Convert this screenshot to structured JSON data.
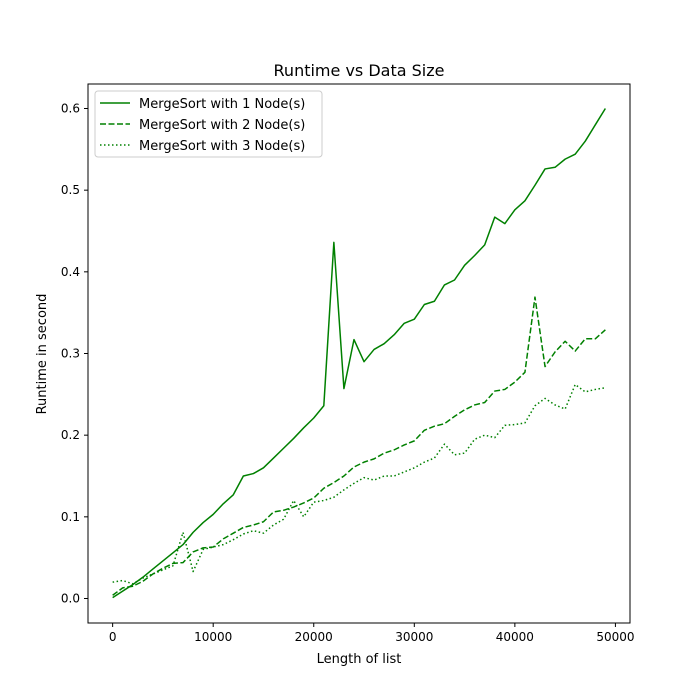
{
  "chart_data": {
    "type": "line",
    "title": "Runtime vs Data Size",
    "xlabel": "Length of list",
    "ylabel": "Runtime in second",
    "xlim": [
      -2450,
      51450
    ],
    "ylim": [
      -0.03,
      0.63
    ],
    "x_ticks": [
      0,
      10000,
      20000,
      30000,
      40000,
      50000
    ],
    "x_tick_labels": [
      "0",
      "10000",
      "20000",
      "30000",
      "40000",
      "50000"
    ],
    "y_ticks": [
      0.0,
      0.1,
      0.2,
      0.3,
      0.4,
      0.5,
      0.6
    ],
    "y_tick_labels": [
      "0.0",
      "0.1",
      "0.2",
      "0.3",
      "0.4",
      "0.5",
      "0.6"
    ],
    "grid": false,
    "legend_position": "top-left",
    "color": "#008000",
    "x": [
      0,
      1000,
      2000,
      3000,
      4000,
      5000,
      6000,
      7000,
      8000,
      9000,
      10000,
      11000,
      12000,
      13000,
      14000,
      15000,
      16000,
      17000,
      18000,
      19000,
      20000,
      21000,
      22000,
      23000,
      24000,
      25000,
      26000,
      27000,
      28000,
      29000,
      30000,
      31000,
      32000,
      33000,
      34000,
      35000,
      36000,
      37000,
      38000,
      39000,
      40000,
      41000,
      42000,
      43000,
      44000,
      45000,
      46000,
      47000,
      48000,
      49000
    ],
    "series": [
      {
        "name": "MergeSort with 1 Node(s)",
        "style": "solid",
        "values": [
          0.001,
          0.009,
          0.017,
          0.026,
          0.036,
          0.046,
          0.056,
          0.066,
          0.081,
          0.093,
          0.103,
          0.116,
          0.127,
          0.15,
          0.153,
          0.16,
          0.172,
          0.184,
          0.196,
          0.209,
          0.221,
          0.236,
          0.436,
          0.257,
          0.317,
          0.29,
          0.305,
          0.312,
          0.323,
          0.337,
          0.342,
          0.36,
          0.364,
          0.384,
          0.39,
          0.408,
          0.42,
          0.433,
          0.467,
          0.459,
          0.476,
          0.487,
          0.506,
          0.526,
          0.528,
          0.538,
          0.544,
          0.56,
          0.58,
          0.6
        ]
      },
      {
        "name": "MergeSort with 2 Node(s)",
        "style": "dashed",
        "values": [
          0.004,
          0.013,
          0.015,
          0.021,
          0.03,
          0.037,
          0.043,
          0.044,
          0.057,
          0.062,
          0.063,
          0.073,
          0.08,
          0.087,
          0.09,
          0.094,
          0.106,
          0.108,
          0.112,
          0.117,
          0.123,
          0.135,
          0.142,
          0.15,
          0.161,
          0.167,
          0.171,
          0.178,
          0.182,
          0.188,
          0.193,
          0.206,
          0.211,
          0.214,
          0.223,
          0.231,
          0.237,
          0.24,
          0.254,
          0.256,
          0.265,
          0.277,
          0.369,
          0.284,
          0.302,
          0.315,
          0.303,
          0.318,
          0.318,
          0.329
        ]
      },
      {
        "name": "MergeSort with 3 Node(s)",
        "style": "dotted",
        "values": [
          0.02,
          0.022,
          0.018,
          0.025,
          0.03,
          0.035,
          0.04,
          0.081,
          0.033,
          0.06,
          0.063,
          0.066,
          0.072,
          0.079,
          0.083,
          0.08,
          0.09,
          0.097,
          0.12,
          0.1,
          0.118,
          0.12,
          0.124,
          0.133,
          0.141,
          0.148,
          0.145,
          0.15,
          0.15,
          0.155,
          0.16,
          0.167,
          0.172,
          0.189,
          0.176,
          0.178,
          0.195,
          0.2,
          0.197,
          0.212,
          0.213,
          0.215,
          0.236,
          0.245,
          0.237,
          0.232,
          0.262,
          0.253,
          0.256,
          0.258
        ]
      }
    ]
  }
}
